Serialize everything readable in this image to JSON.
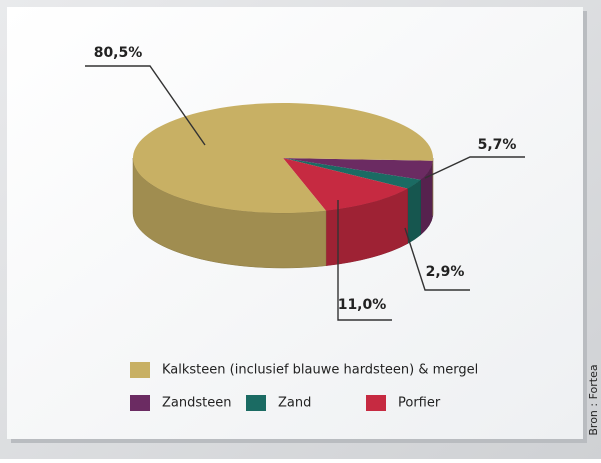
{
  "chart_data": {
    "type": "pie",
    "categories": [
      "Kalksteen (inclusief blauwe hardsteen) & mergel",
      "Zandsteen",
      "Zand",
      "Porfier"
    ],
    "values": [
      80.5,
      5.7,
      2.9,
      11.0
    ],
    "value_labels": [
      "80,5%",
      "5,7%",
      "2,9%",
      "11,0%"
    ],
    "colors": [
      "#c8b064",
      "#6b2b62",
      "#1b6b63",
      "#c62a41"
    ],
    "source": "Bron : Fortea"
  }
}
